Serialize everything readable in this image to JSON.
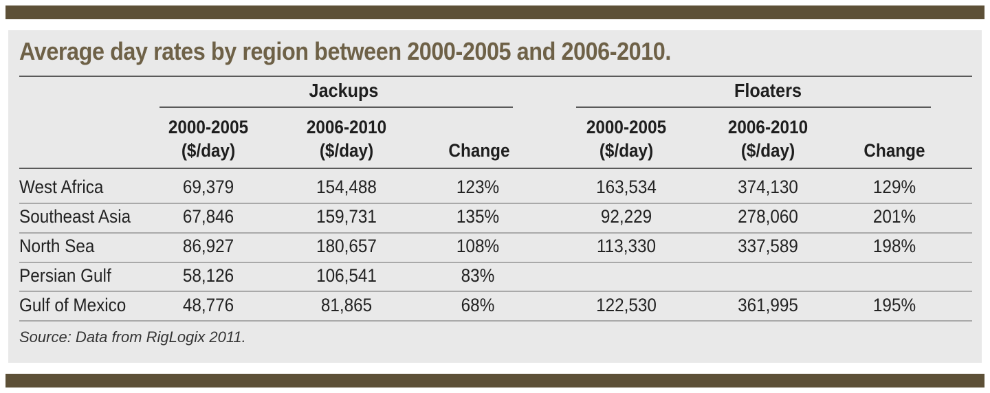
{
  "title": "Average day rates by region between 2000-2005 and 2006-2010.",
  "groups": [
    "Jackups",
    "Floaters"
  ],
  "column_headers": [
    [
      "2000-2005",
      "($/day)"
    ],
    [
      "2006-2010",
      "($/day)"
    ],
    [
      "Change"
    ],
    [
      "2000-2005",
      "($/day)"
    ],
    [
      "2006-2010",
      "($/day)"
    ],
    [
      "Change"
    ]
  ],
  "rows": [
    {
      "region": "West Africa",
      "values": [
        "69,379",
        "154,488",
        "123%",
        "163,534",
        "374,130",
        "129%"
      ]
    },
    {
      "region": "Southeast Asia",
      "values": [
        "67,846",
        "159,731",
        "135%",
        "92,229",
        "278,060",
        "201%"
      ]
    },
    {
      "region": "North Sea",
      "values": [
        "86,927",
        "180,657",
        "108%",
        "113,330",
        "337,589",
        "198%"
      ]
    },
    {
      "region": "Persian Gulf",
      "values": [
        "58,126",
        "106,541",
        "83%",
        "",
        "",
        ""
      ]
    },
    {
      "region": "Gulf of Mexico",
      "values": [
        "48,776",
        "81,865",
        "68%",
        "122,530",
        "361,995",
        "195%"
      ]
    }
  ],
  "source": "Source: Data from RigLogix 2011.",
  "colors": {
    "frame_bar": "#5d5037",
    "title": "#6e6147",
    "panel": "#e9e9e9"
  }
}
